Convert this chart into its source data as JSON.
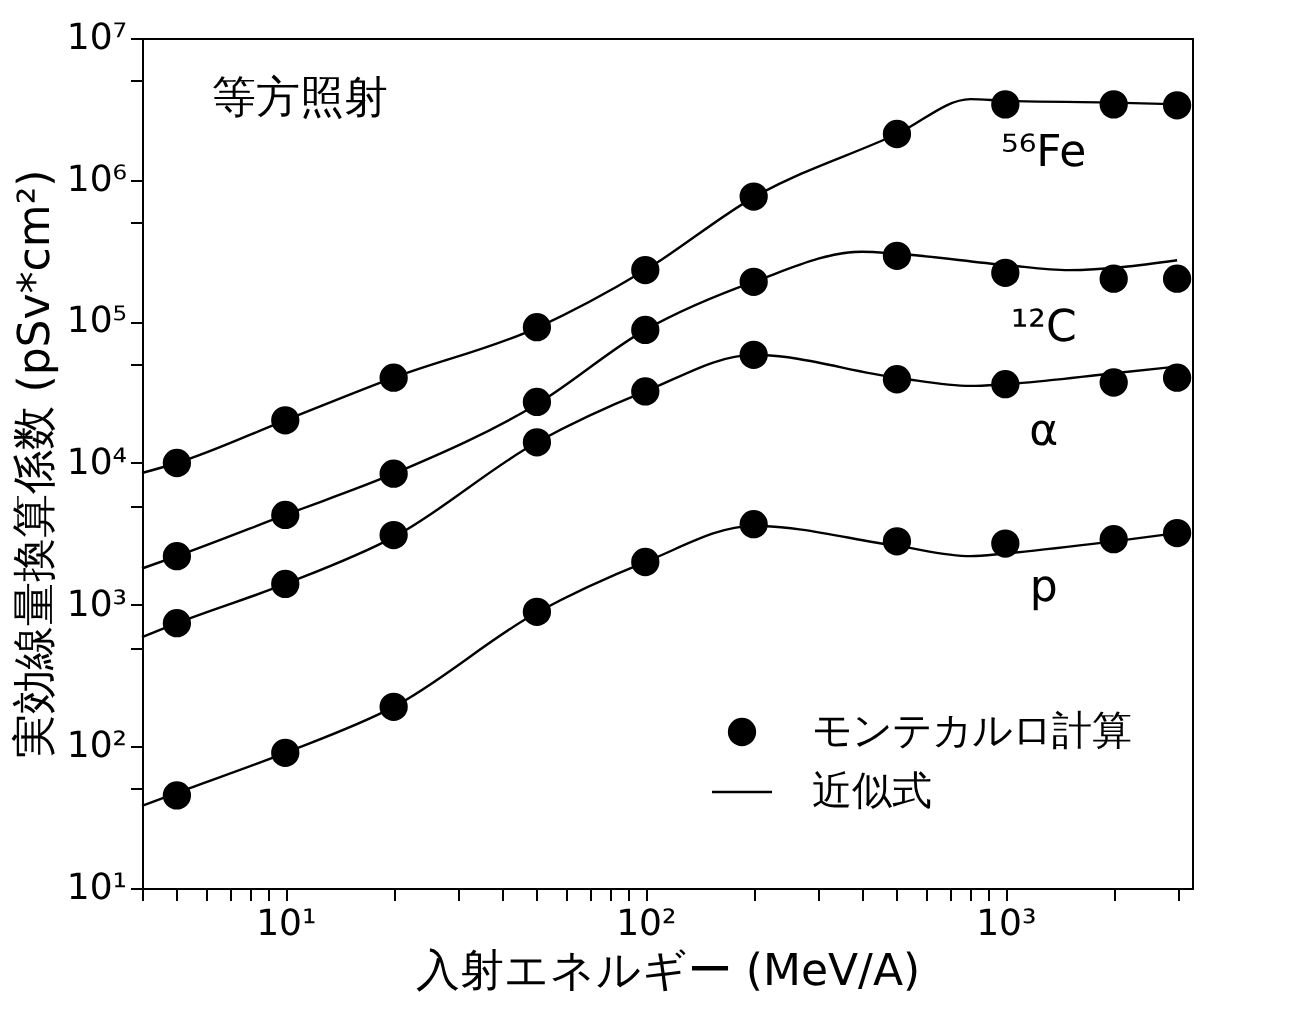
{
  "chart_data": {
    "type": "scatter",
    "xlabel": "入射エネルギー (MeV/A)",
    "ylabel": "実効線量換算係数 (pSv*cm²)",
    "log": "xy",
    "grid": false,
    "legend": "bottom right",
    "xlim": [
      4,
      3300
    ],
    "ylim": [
      10,
      10000000
    ],
    "xticks": [
      {
        "value": 4,
        "label": null
      },
      {
        "value": 5,
        "label": null
      },
      {
        "value": 6,
        "label": null
      },
      {
        "value": 7,
        "label": null
      },
      {
        "value": 8,
        "label": null
      },
      {
        "value": 9,
        "label": null
      },
      {
        "value": 10,
        "label": "10¹"
      },
      {
        "value": 20,
        "label": null
      },
      {
        "value": 30,
        "label": null
      },
      {
        "value": 40,
        "label": null
      },
      {
        "value": 50,
        "label": null
      },
      {
        "value": 60,
        "label": null
      },
      {
        "value": 70,
        "label": null
      },
      {
        "value": 80,
        "label": null
      },
      {
        "value": 90,
        "label": null
      },
      {
        "value": 100,
        "label": "10²"
      },
      {
        "value": 200,
        "label": null
      },
      {
        "value": 300,
        "label": null
      },
      {
        "value": 400,
        "label": null
      },
      {
        "value": 500,
        "label": null
      },
      {
        "value": 600,
        "label": null
      },
      {
        "value": 700,
        "label": null
      },
      {
        "value": 800,
        "label": null
      },
      {
        "value": 900,
        "label": null
      },
      {
        "value": 1000,
        "label": "10³"
      },
      {
        "value": 2000,
        "label": null
      },
      {
        "value": 3000,
        "label": null
      }
    ],
    "yticks": [
      {
        "value": 10,
        "label": "10¹"
      },
      {
        "value": 50,
        "label": null
      },
      {
        "value": 100,
        "label": "10²"
      },
      {
        "value": 500,
        "label": null
      },
      {
        "value": 1000,
        "label": "10³"
      },
      {
        "value": 5000,
        "label": null
      },
      {
        "value": 10000,
        "label": "10⁴"
      },
      {
        "value": 50000,
        "label": null
      },
      {
        "value": 100000,
        "label": "10⁵"
      },
      {
        "value": 500000,
        "label": null
      },
      {
        "value": 1000000,
        "label": "10⁶"
      },
      {
        "value": 5000000,
        "label": null
      },
      {
        "value": 10000000,
        "label": "10⁷"
      }
    ],
    "x": [
      5,
      10,
      20,
      50,
      100,
      200,
      500,
      1000,
      2000,
      3000
    ],
    "series": [
      {
        "name": "モンテカルロ計算",
        "marker": "circle",
        "color": "#000000",
        "values": [
          10000,
          20000,
          40000,
          91000,
          230000,
          760000,
          2100000,
          3400000,
          3400000,
          3350000
        ]
      },
      {
        "marker": "circle",
        "color": "#000000",
        "values": [
          2200,
          4300,
          8400,
          27000,
          87000,
          190000,
          290000,
          220000,
          200000,
          200000
        ]
      },
      {
        "marker": "circle",
        "color": "#000000",
        "values": [
          740,
          1400,
          3100,
          14000,
          32000,
          58000,
          39000,
          36000,
          37000,
          40000
        ]
      },
      {
        "marker": "circle",
        "color": "#000000",
        "values": [
          45,
          90,
          190,
          890,
          2000,
          3700,
          2800,
          2700,
          2900,
          3200
        ]
      },
      {
        "name": "近似式",
        "type": "line",
        "line_style": "solid",
        "marker": "none",
        "color": "#000000",
        "x": [
          4,
          5,
          10,
          20,
          50,
          100,
          200,
          500,
          800,
          1000,
          2000,
          3000
        ],
        "values": [
          8500,
          10000,
          20000,
          40000,
          90000,
          230000,
          750000,
          2100000,
          3700000,
          3600000,
          3500000,
          3400000
        ]
      },
      {
        "type": "line",
        "line_style": "solid",
        "marker": "none",
        "color": "#000000",
        "x": [
          4,
          5,
          10,
          20,
          50,
          100,
          200,
          400,
          500,
          1000,
          1500,
          3000
        ],
        "values": [
          1800,
          2200,
          4300,
          8400,
          26000,
          87000,
          190000,
          310000,
          300000,
          250000,
          230000,
          270000
        ]
      },
      {
        "type": "line",
        "line_style": "solid",
        "marker": "none",
        "color": "#000000",
        "x": [
          4,
          5,
          10,
          20,
          50,
          100,
          200,
          500,
          800,
          1000,
          2000,
          3000
        ],
        "values": [
          590,
          740,
          1400,
          3000,
          14000,
          32000,
          58000,
          40000,
          35000,
          36000,
          43000,
          48000
        ]
      },
      {
        "type": "line",
        "line_style": "solid",
        "marker": "none",
        "color": "#000000",
        "x": [
          4,
          5,
          10,
          20,
          50,
          100,
          200,
          500,
          800,
          1000,
          2000,
          3000
        ],
        "values": [
          38,
          47,
          90,
          190,
          880,
          2000,
          3600,
          2600,
          2200,
          2300,
          2800,
          3200
        ]
      }
    ],
    "annotations": [
      "等方照射",
      "⁵⁶Fe",
      "¹²C",
      "α",
      "p"
    ]
  }
}
